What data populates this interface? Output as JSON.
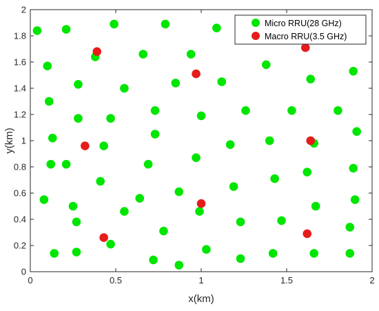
{
  "chart_data": {
    "type": "scatter",
    "xlabel": "x(km)",
    "ylabel": "y(km)",
    "xlim": [
      0,
      2
    ],
    "ylim": [
      0,
      2
    ],
    "xticks": [
      "0",
      "0.5",
      "1",
      "1.5",
      "2"
    ],
    "yticks": [
      "0",
      "0.2",
      "0.4",
      "0.6",
      "0.8",
      "1",
      "1.2",
      "1.4",
      "1.6",
      "1.8",
      "2"
    ],
    "grid": false,
    "legend_position": "top-right",
    "series": [
      {
        "name": "Micro RRU(28 GHz)",
        "color": "#00e600",
        "points": [
          [
            0.04,
            1.84
          ],
          [
            0.21,
            1.85
          ],
          [
            0.49,
            1.89
          ],
          [
            0.79,
            1.89
          ],
          [
            1.09,
            1.86
          ],
          [
            0.1,
            1.57
          ],
          [
            0.38,
            1.64
          ],
          [
            0.66,
            1.66
          ],
          [
            0.94,
            1.66
          ],
          [
            1.38,
            1.58
          ],
          [
            1.89,
            1.53
          ],
          [
            0.28,
            1.43
          ],
          [
            0.55,
            1.4
          ],
          [
            0.85,
            1.44
          ],
          [
            1.12,
            1.45
          ],
          [
            1.64,
            1.47
          ],
          [
            0.11,
            1.3
          ],
          [
            0.28,
            1.17
          ],
          [
            0.47,
            1.17
          ],
          [
            0.73,
            1.23
          ],
          [
            1.0,
            1.19
          ],
          [
            1.26,
            1.23
          ],
          [
            1.53,
            1.23
          ],
          [
            1.8,
            1.23
          ],
          [
            0.13,
            1.02
          ],
          [
            0.43,
            0.96
          ],
          [
            0.73,
            1.05
          ],
          [
            1.17,
            0.97
          ],
          [
            1.4,
            1.0
          ],
          [
            1.66,
            0.98
          ],
          [
            1.91,
            1.07
          ],
          [
            0.12,
            0.82
          ],
          [
            0.21,
            0.82
          ],
          [
            0.69,
            0.82
          ],
          [
            0.97,
            0.87
          ],
          [
            1.43,
            0.71
          ],
          [
            1.62,
            0.76
          ],
          [
            1.89,
            0.79
          ],
          [
            0.41,
            0.69
          ],
          [
            0.08,
            0.55
          ],
          [
            0.25,
            0.5
          ],
          [
            0.64,
            0.56
          ],
          [
            0.87,
            0.61
          ],
          [
            1.19,
            0.65
          ],
          [
            1.67,
            0.5
          ],
          [
            1.9,
            0.55
          ],
          [
            0.27,
            0.38
          ],
          [
            0.55,
            0.46
          ],
          [
            0.78,
            0.31
          ],
          [
            0.99,
            0.46
          ],
          [
            1.23,
            0.38
          ],
          [
            1.47,
            0.39
          ],
          [
            1.87,
            0.34
          ],
          [
            0.14,
            0.14
          ],
          [
            0.27,
            0.15
          ],
          [
            0.47,
            0.21
          ],
          [
            0.72,
            0.09
          ],
          [
            0.87,
            0.05
          ],
          [
            1.03,
            0.17
          ],
          [
            1.23,
            0.1
          ],
          [
            1.42,
            0.14
          ],
          [
            1.66,
            0.14
          ],
          [
            1.87,
            0.14
          ]
        ]
      },
      {
        "name": "Macro RRU(3.5 GHz)",
        "color": "#e61c1c",
        "points": [
          [
            0.39,
            1.68
          ],
          [
            0.97,
            1.51
          ],
          [
            1.61,
            1.71
          ],
          [
            0.32,
            0.96
          ],
          [
            1.64,
            1.0
          ],
          [
            1.0,
            0.52
          ],
          [
            0.43,
            0.26
          ],
          [
            1.62,
            0.29
          ]
        ]
      }
    ]
  }
}
